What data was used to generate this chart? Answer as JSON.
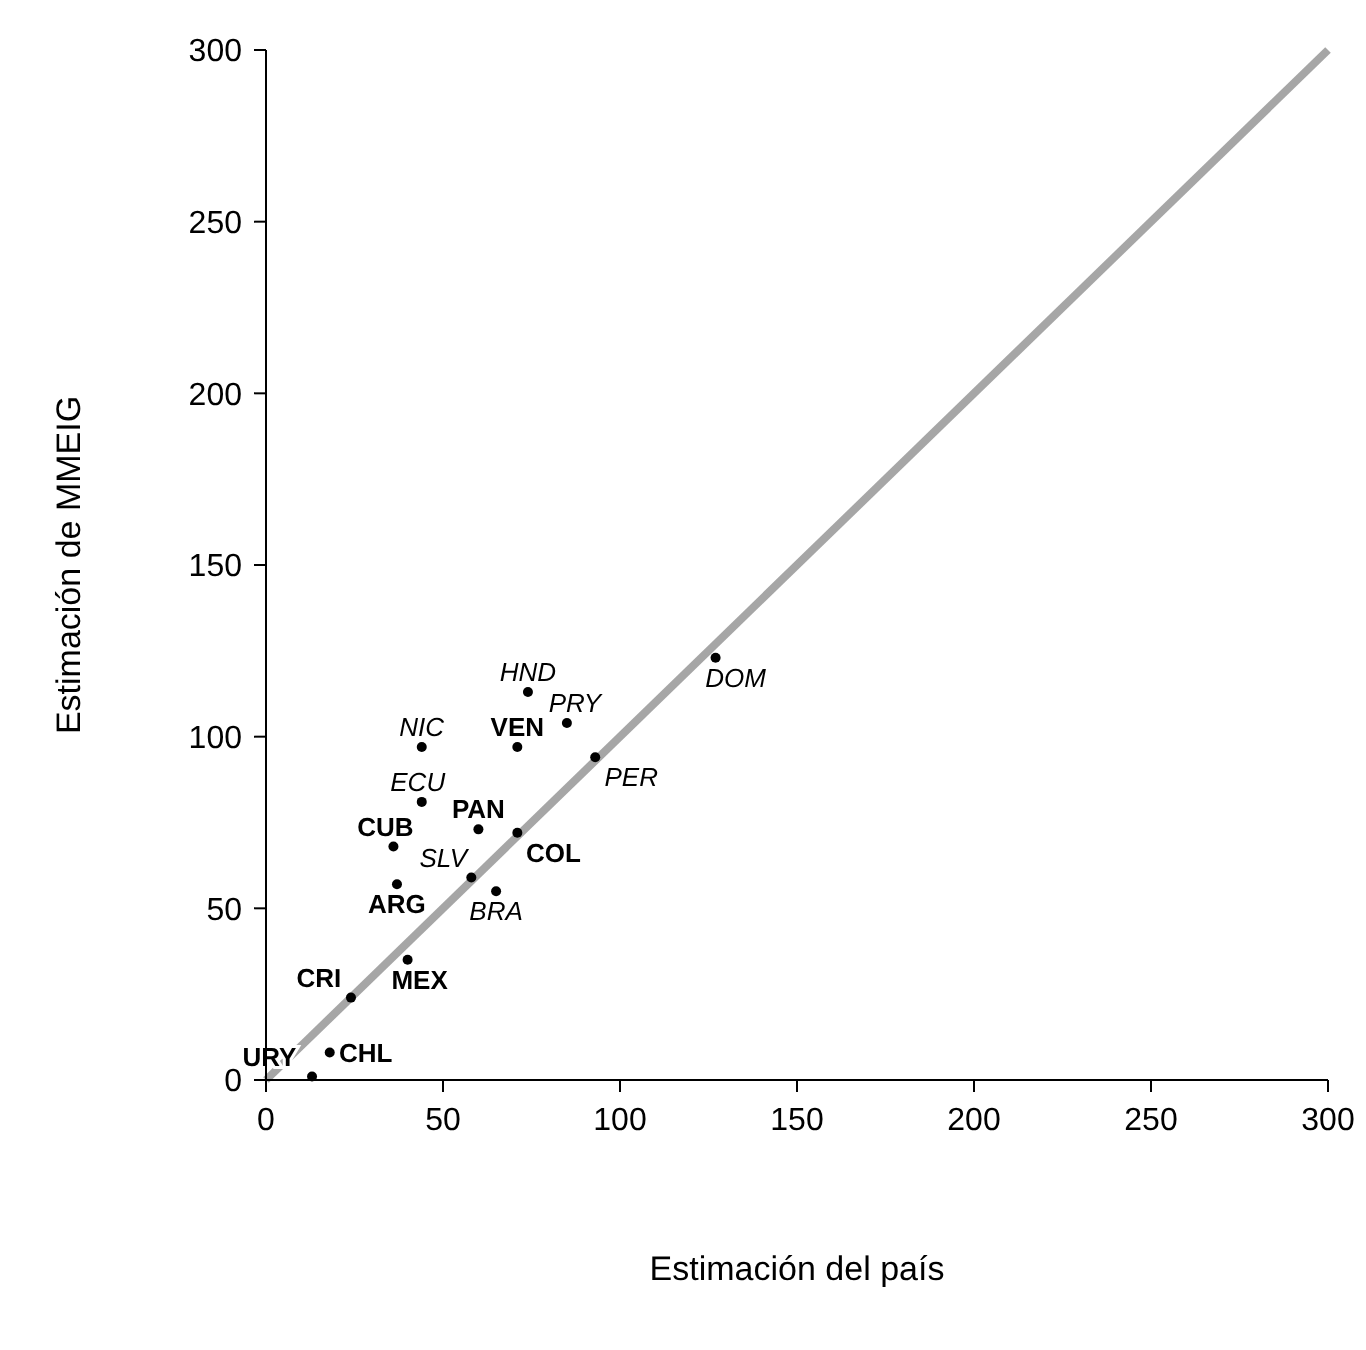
{
  "chart_data": {
    "type": "scatter",
    "xlabel": "Estimación del país",
    "ylabel": "Estimación de MMEIG",
    "xlim": [
      0,
      300
    ],
    "ylim": [
      0,
      300
    ],
    "xticks": [
      0,
      50,
      100,
      150,
      200,
      250,
      300
    ],
    "yticks": [
      0,
      50,
      100,
      150,
      200,
      250,
      300
    ],
    "grid": false,
    "series": [
      {
        "color": "#000000",
        "marker": "circle",
        "x": [
          71,
          60,
          71,
          36,
          37,
          40,
          24,
          18,
          13
        ],
        "values": [
          97,
          73,
          72,
          68,
          57,
          35,
          24,
          8,
          1
        ],
        "value_labels": [
          "VEN",
          "PAN",
          "COL",
          "CUB",
          "ARG",
          "MEX",
          "CRI",
          "CHL",
          "URY"
        ]
      },
      {
        "color": "#000000",
        "marker": "circle",
        "x": [
          127,
          74,
          85,
          44,
          93,
          44,
          58,
          65
        ],
        "values": [
          123,
          113,
          104,
          97,
          94,
          81,
          59,
          55
        ],
        "value_labels": [
          "DOM",
          "HND",
          "PRY",
          "NIC",
          "PER",
          "ECU",
          "SLV",
          "BRA"
        ]
      },
      {
        "type": "line",
        "color": "#a6a6a6",
        "x": [
          0,
          300
        ],
        "values": [
          0,
          300
        ]
      }
    ]
  }
}
